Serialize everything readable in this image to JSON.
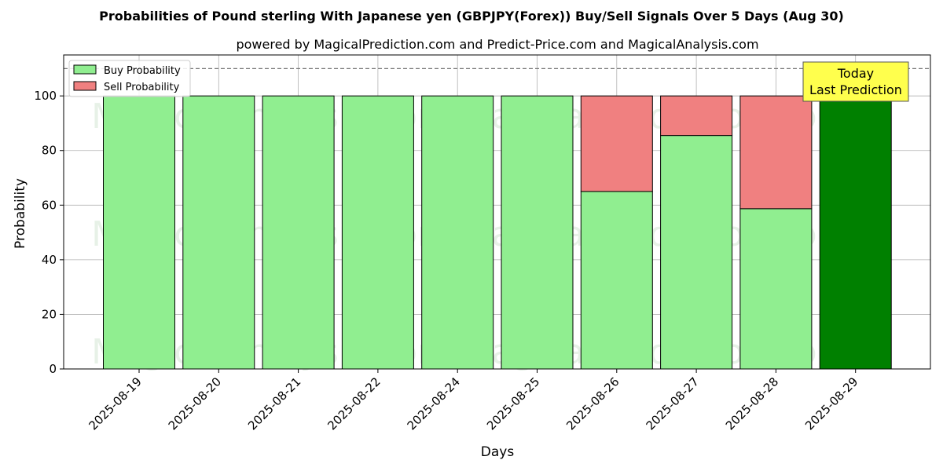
{
  "chart_data": {
    "type": "bar",
    "stacked": true,
    "title": "Probabilities of Pound sterling With Japanese yen (GBPJPY(Forex)) Buy/Sell Signals Over 5 Days (Aug 30)",
    "subtitle": "powered by MagicalPrediction.com and Predict-Price.com and MagicalAnalysis.com",
    "xlabel": "Days",
    "ylabel": "Probability",
    "ylim": [
      0,
      115
    ],
    "yticks": [
      0,
      20,
      40,
      60,
      80,
      100
    ],
    "grid": true,
    "legend_position": "top-left",
    "reference_line": 110,
    "categories": [
      "2025-08-19",
      "2025-08-20",
      "2025-08-21",
      "2025-08-22",
      "2025-08-24",
      "2025-08-25",
      "2025-08-26",
      "2025-08-27",
      "2025-08-28",
      "2025-08-29"
    ],
    "series": [
      {
        "name": "Buy Probability",
        "color": "#90ee90",
        "values": [
          100,
          100,
          100,
          100,
          100,
          100,
          65,
          85.5,
          58.7,
          100
        ]
      },
      {
        "name": "Sell Probability",
        "color": "#f08080",
        "values": [
          0,
          0,
          0,
          0,
          0,
          0,
          35,
          14.5,
          41.3,
          0
        ]
      }
    ],
    "highlight": {
      "category": "2025-08-29",
      "color": "#008000"
    },
    "annotation": {
      "line1": "Today",
      "line2": "Last Prediction",
      "background": "#ffff4d"
    },
    "watermarks": [
      "MagicalAnalysis.com",
      "MagicalPrediction.com",
      "MagicalAnalysis.com",
      "MagicalPrediction.com",
      "MagicalAnalysis.com",
      "MagicalPrediction.com"
    ]
  }
}
